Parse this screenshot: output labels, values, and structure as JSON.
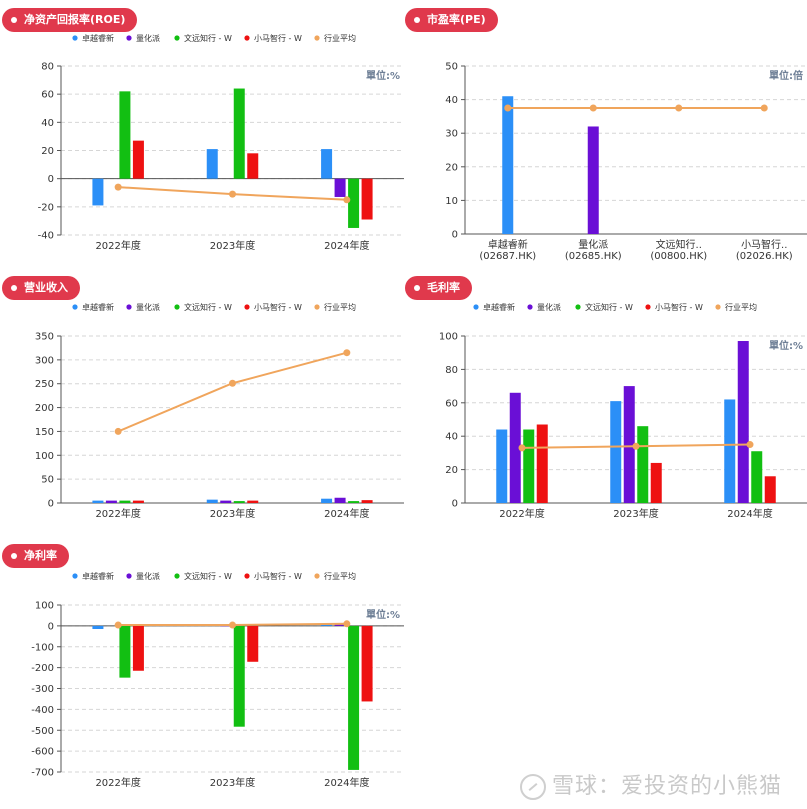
{
  "colors": {
    "title_bg": "#e0394c",
    "series": [
      "#2b8ff7",
      "#6a0fd6",
      "#12bf12",
      "#ee1111",
      "#f0a55c"
    ],
    "grid": "#d6d6d6",
    "unit": "#6e7f96"
  },
  "watermark": "雪球：爱投资的小熊猫",
  "legend_items": [
    "卓越睿新",
    "量化派",
    "文远知行 - W",
    "小马智行 - W",
    "行业平均"
  ],
  "chart_data": [
    {
      "id": "roe",
      "title": "净资产回报率(ROE)",
      "type": "bar",
      "unit": "單位:%",
      "categories": [
        "2022年度",
        "2023年度",
        "2024年度"
      ],
      "ylim": [
        -40,
        80
      ],
      "yticks": [
        -40,
        -20,
        0,
        20,
        40,
        60,
        80
      ],
      "series": [
        {
          "name": "卓越睿新",
          "values": [
            -19,
            21,
            21
          ]
        },
        {
          "name": "量化派",
          "values": [
            null,
            null,
            -13
          ]
        },
        {
          "name": "文远知行 - W",
          "values": [
            62,
            64,
            -35
          ]
        },
        {
          "name": "小马智行 - W",
          "values": [
            27,
            18,
            -29
          ]
        }
      ],
      "line": {
        "name": "行业平均",
        "values": [
          -6,
          -11,
          -15
        ]
      },
      "grid": true,
      "legend": "top"
    },
    {
      "id": "pe",
      "title": "市盈率(PE)",
      "type": "bar",
      "unit": "單位:倍",
      "categories": [
        "卓越睿新\n(02687.HK)",
        "量化派\n(02685.HK)",
        "文远知行..\n(00800.HK)",
        "小马智行..\n(02026.HK)"
      ],
      "ylim": [
        0,
        50
      ],
      "yticks": [
        0,
        10,
        20,
        30,
        40,
        50
      ],
      "values": [
        41,
        32,
        null,
        null
      ],
      "bar_colors": [
        "#2b8ff7",
        "#6a0fd6",
        "#12bf12",
        "#ee1111"
      ],
      "line": {
        "name": "行业平均",
        "values": [
          37.5,
          37.5,
          37.5,
          37.5
        ]
      },
      "grid": true
    },
    {
      "id": "rev",
      "title": "营业收入",
      "type": "bar",
      "unit": "",
      "categories": [
        "2022年度",
        "2023年度",
        "2024年度"
      ],
      "ylim": [
        0,
        350
      ],
      "yticks": [
        0,
        50,
        100,
        150,
        200,
        250,
        300,
        350
      ],
      "series": [
        {
          "name": "卓越睿新",
          "values": [
            5,
            7,
            9
          ]
        },
        {
          "name": "量化派",
          "values": [
            5,
            5,
            11
          ]
        },
        {
          "name": "文远知行 - W",
          "values": [
            5,
            4,
            4
          ]
        },
        {
          "name": "小马智行 - W",
          "values": [
            5,
            5,
            6
          ]
        }
      ],
      "line": {
        "name": "行业平均",
        "values": [
          150,
          251,
          315
        ]
      },
      "grid": true,
      "legend": "top"
    },
    {
      "id": "gm",
      "title": "毛利率",
      "type": "bar",
      "unit": "單位:%",
      "categories": [
        "2022年度",
        "2023年度",
        "2024年度"
      ],
      "ylim": [
        0,
        100
      ],
      "yticks": [
        0,
        20,
        40,
        60,
        80,
        100
      ],
      "series": [
        {
          "name": "卓越睿新",
          "values": [
            44,
            61,
            62
          ]
        },
        {
          "name": "量化派",
          "values": [
            66,
            70,
            97
          ]
        },
        {
          "name": "文远知行 - W",
          "values": [
            44,
            46,
            31
          ]
        },
        {
          "name": "小马智行 - W",
          "values": [
            47,
            24,
            16
          ]
        }
      ],
      "line": {
        "name": "行业平均",
        "values": [
          33,
          34,
          35
        ]
      },
      "grid": true,
      "legend": "top"
    },
    {
      "id": "nm",
      "title": "净利率",
      "type": "bar",
      "unit": "單位:%",
      "categories": [
        "2022年度",
        "2023年度",
        "2024年度"
      ],
      "ylim": [
        -700,
        100
      ],
      "yticks": [
        -700,
        -600,
        -500,
        -400,
        -300,
        -200,
        -100,
        0,
        100
      ],
      "series": [
        {
          "name": "卓越睿新",
          "values": [
            -15,
            8,
            6
          ]
        },
        {
          "name": "量化派",
          "values": [
            null,
            3,
            6
          ]
        },
        {
          "name": "文远知行 - W",
          "values": [
            -248,
            -483,
            -690
          ]
        },
        {
          "name": "小马智行 - W",
          "values": [
            -215,
            -172,
            -362
          ]
        }
      ],
      "line": {
        "name": "行业平均",
        "values": [
          4,
          4,
          10
        ]
      },
      "grid": true,
      "legend": "top"
    }
  ]
}
